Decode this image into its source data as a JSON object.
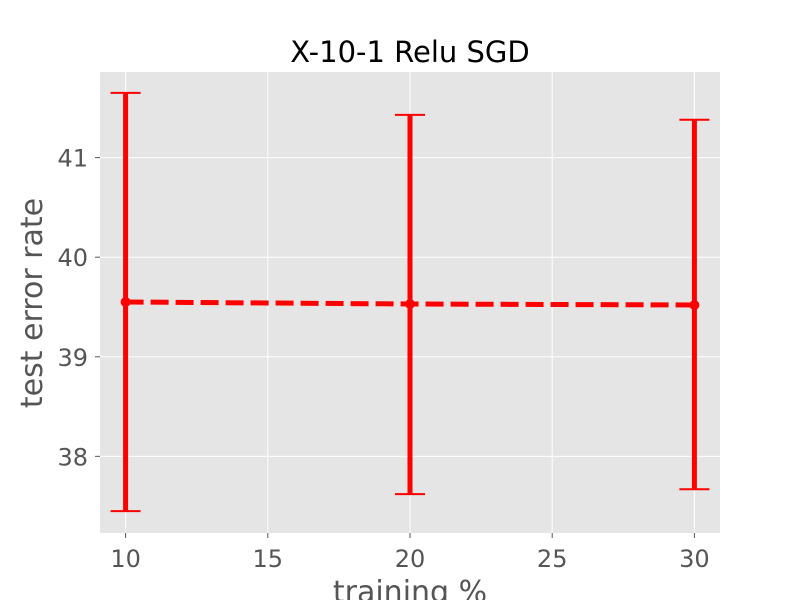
{
  "chart_data": {
    "type": "line",
    "title": "X-10-1 Relu SGD",
    "xlabel": "training %",
    "ylabel": "test error rate",
    "x": [
      10,
      20,
      30
    ],
    "series": [
      {
        "values": [
          39.55,
          39.53,
          39.52
        ],
        "error_low": [
          37.45,
          37.62,
          37.67
        ],
        "error_high": [
          41.65,
          41.43,
          41.38
        ],
        "color": "#ff0000",
        "line_style": "dashed",
        "marker": "circle"
      }
    ],
    "xlim": [
      9.1,
      30.9
    ],
    "ylim": [
      37.23,
      41.86
    ],
    "xticks": [
      10,
      15,
      20,
      25,
      30
    ],
    "yticks": [
      38,
      39,
      40,
      41
    ],
    "xtick_labels": [
      "10",
      "15",
      "20",
      "25",
      "30"
    ],
    "ytick_labels": [
      "38",
      "39",
      "40",
      "41"
    ],
    "grid": true,
    "style": "ggplot",
    "background_color": "#e5e5e5",
    "grid_color": "#ffffff"
  }
}
